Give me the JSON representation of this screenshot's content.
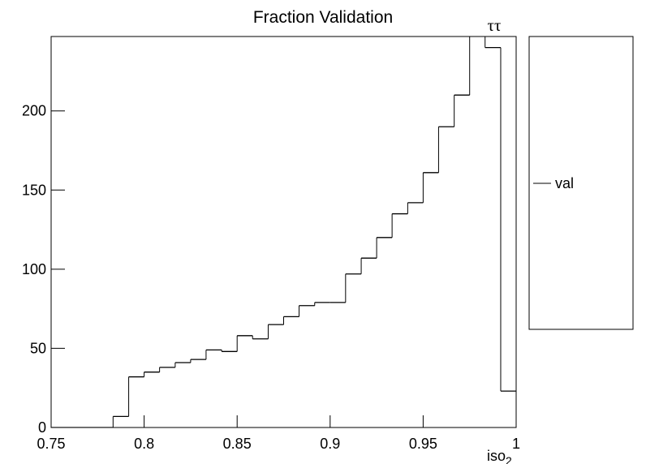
{
  "chart_data": {
    "type": "histogram",
    "title": "Fraction Validation",
    "annotation": "ττ",
    "x_label": "iso",
    "x_label_subscript": "2",
    "bins": [
      0.75,
      0.7583,
      0.7667,
      0.775,
      0.7833,
      0.7917,
      0.8,
      0.8083,
      0.8167,
      0.825,
      0.8333,
      0.8417,
      0.85,
      0.8583,
      0.8667,
      0.875,
      0.8833,
      0.8917,
      0.9,
      0.9083,
      0.9167,
      0.925,
      0.9333,
      0.9417,
      0.95,
      0.9583,
      0.9667,
      0.975,
      0.9833,
      0.9917,
      1.0
    ],
    "series": [
      {
        "name": "val",
        "color": "#000000",
        "values": [
          0,
          0,
          0,
          0,
          7,
          32,
          35,
          38,
          41,
          43,
          49,
          48,
          58,
          56,
          65,
          70,
          77,
          79,
          79,
          97,
          107,
          120,
          135,
          142,
          161,
          190,
          210,
          265,
          240,
          23
        ]
      }
    ],
    "xlim": [
      0.75,
      1
    ],
    "xticks": [
      0.75,
      0.8,
      0.85,
      0.9,
      0.95,
      1
    ],
    "ylim": [
      0,
      247
    ],
    "yticks": [
      0,
      50,
      100,
      150,
      200
    ],
    "legend": "right"
  }
}
